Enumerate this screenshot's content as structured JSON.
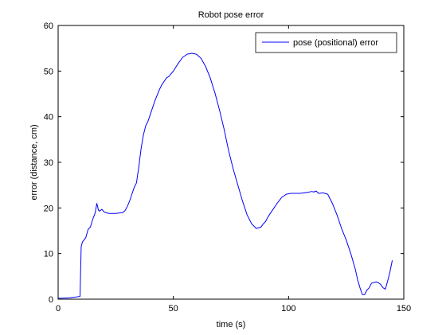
{
  "chart_data": {
    "type": "line",
    "title": "Robot pose error",
    "xlabel": "time (s)",
    "ylabel": "error (distance, cm)",
    "xlim": [
      0,
      150
    ],
    "ylim": [
      0,
      60
    ],
    "xticks": [
      0,
      50,
      100,
      150
    ],
    "yticks": [
      0,
      10,
      20,
      30,
      40,
      50,
      60
    ],
    "grid": false,
    "legend_position": "top-right",
    "series": [
      {
        "name": "pose (positional) error",
        "color": "#0000ff",
        "x": [
          0,
          5,
          9.5,
          10,
          10.5,
          12,
          13,
          14,
          15,
          16,
          16.8,
          17.5,
          18,
          19,
          20,
          22,
          25,
          28,
          29,
          30,
          31,
          32,
          33,
          34,
          35,
          36,
          37,
          38,
          39,
          40,
          42,
          44,
          45,
          47,
          48,
          50,
          52,
          54,
          56,
          58,
          60,
          62,
          64,
          66,
          68,
          70,
          72,
          74,
          76,
          78,
          80,
          81,
          82,
          84,
          86,
          88,
          89,
          90,
          91,
          93,
          95,
          97,
          99,
          101,
          103,
          105,
          108,
          110,
          111,
          112,
          113,
          115,
          117,
          119,
          121,
          123,
          125,
          127,
          129,
          130,
          131,
          132,
          133,
          134,
          135,
          136,
          138,
          139,
          140,
          141,
          142,
          143,
          144,
          145
        ],
        "y": [
          0.2,
          0.3,
          0.6,
          11.5,
          12.5,
          13.5,
          15.3,
          15.8,
          17.5,
          18.8,
          21.0,
          19.5,
          19.3,
          19.7,
          19.1,
          18.8,
          18.8,
          19.0,
          19.4,
          20.3,
          21.5,
          23.0,
          24.5,
          25.5,
          29.0,
          33.0,
          36.0,
          38.0,
          39.0,
          40.5,
          43.5,
          46.0,
          47.0,
          48.5,
          48.8,
          50.0,
          51.6,
          53.0,
          53.7,
          53.9,
          53.7,
          52.8,
          51.0,
          48.5,
          45.3,
          41.5,
          37.3,
          32.5,
          28.5,
          25.0,
          21.5,
          20.0,
          18.5,
          16.5,
          15.5,
          15.8,
          16.5,
          17.0,
          18.0,
          19.5,
          21.0,
          22.3,
          23.0,
          23.2,
          23.2,
          23.2,
          23.4,
          23.6,
          23.5,
          23.7,
          23.2,
          23.3,
          23.0,
          21.0,
          18.5,
          15.5,
          13.0,
          10.0,
          6.5,
          4.2,
          2.5,
          1.0,
          1.0,
          2.0,
          2.5,
          3.5,
          3.8,
          3.6,
          3.2,
          2.5,
          2.2,
          4.0,
          6.0,
          8.5
        ]
      }
    ]
  }
}
